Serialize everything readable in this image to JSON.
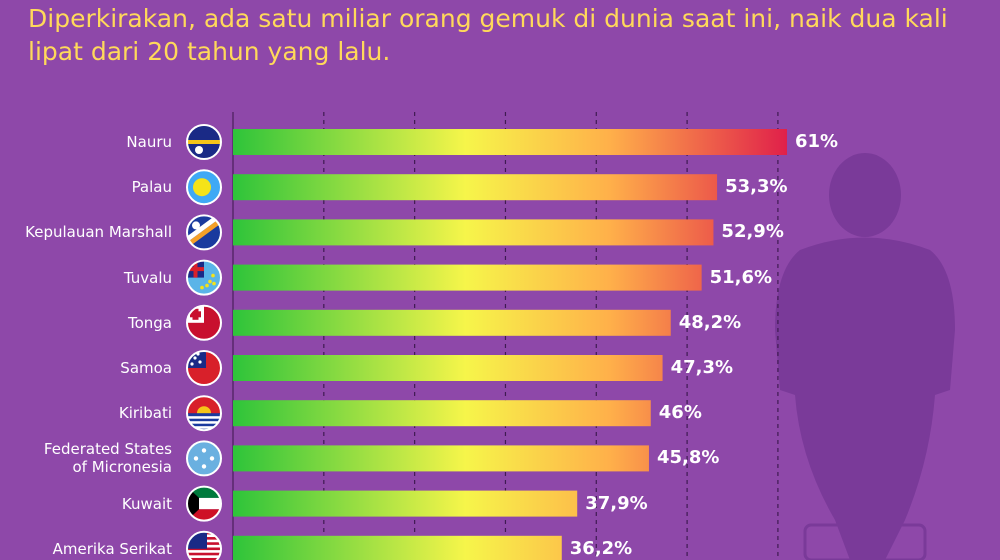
{
  "header": {
    "subtitle": "Diperkirakan, ada satu miliar orang gemuk di dunia saat ini, naik dua kali lipat dari 20 tahun yang lalu."
  },
  "colors": {
    "background": "#8e48a9",
    "subtitle": "#ffd95a",
    "bar_start": "#2ec43a",
    "bar_mid": "#f6f54a",
    "bar_warm": "#ffb04a",
    "bar_end": "#e0204a",
    "silhouette": "#7a3a99"
  },
  "chart_data": {
    "type": "bar",
    "orientation": "horizontal",
    "unit": "%",
    "xlim": [
      0,
      70
    ],
    "grid": true,
    "categories": [
      "Nauru",
      "Palau",
      "Kepulauan Marshall",
      "Tuvalu",
      "Tonga",
      "Samoa",
      "Kiribati",
      "Federated States of Micronesia",
      "Kuwait",
      "Amerika Serikat"
    ],
    "label_lines": [
      [
        "Nauru"
      ],
      [
        "Palau"
      ],
      [
        "Kepulauan Marshall"
      ],
      [
        "Tuvalu"
      ],
      [
        "Tonga"
      ],
      [
        "Samoa"
      ],
      [
        "Kiribati"
      ],
      [
        "Federated States",
        "of Micronesia"
      ],
      [
        "Kuwait"
      ],
      [
        "Amerika Serikat"
      ]
    ],
    "values": [
      61,
      53.3,
      52.9,
      51.6,
      48.2,
      47.3,
      46,
      45.8,
      37.9,
      36.2
    ],
    "value_labels": [
      "61%",
      "53,3%",
      "52,9%",
      "51,6%",
      "48,2%",
      "47,3%",
      "46%",
      "45,8%",
      "37,9%",
      "36,2%"
    ],
    "flags": [
      "nauru-flag-icon",
      "palau-flag-icon",
      "marshall-islands-flag-icon",
      "tuvalu-flag-icon",
      "tonga-flag-icon",
      "samoa-flag-icon",
      "kiribati-flag-icon",
      "micronesia-flag-icon",
      "kuwait-flag-icon",
      "usa-flag-icon"
    ]
  }
}
